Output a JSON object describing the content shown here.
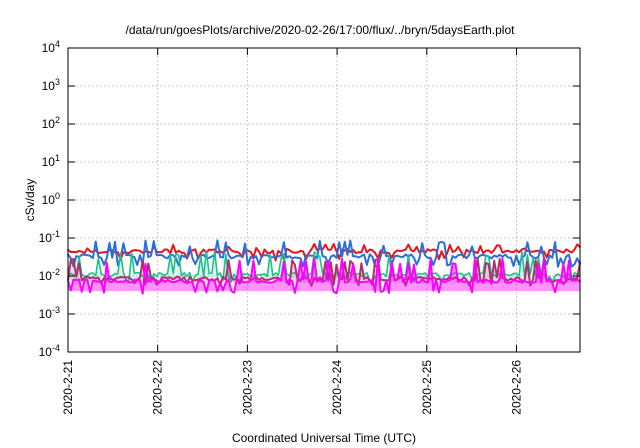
{
  "chart_data": {
    "type": "line",
    "title": "/data/run/goesPlots/archive/2020-02-26/17:00/flux/../bryn/5daysEarth.plot",
    "xlabel": "Coordinated Universal Time (UTC)",
    "ylabel": "cSv/day",
    "yscale": "log",
    "ylim": [
      0.0001,
      10000
    ],
    "xlim": [
      "2020-02-21",
      "2020-02-26 17:00"
    ],
    "grid": true,
    "legend": "none",
    "x_ticks": [
      "2020-2-21",
      "2020-2-22",
      "2020-2-23",
      "2020-2-24",
      "2020-2-25",
      "2020-2-26"
    ],
    "y_ticks": [
      {
        "base": "10",
        "exp": "-4"
      },
      {
        "base": "10",
        "exp": "-3"
      },
      {
        "base": "10",
        "exp": "-2"
      },
      {
        "base": "10",
        "exp": "-1"
      },
      {
        "base": "10",
        "exp": "0"
      },
      {
        "base": "10",
        "exp": "1"
      },
      {
        "base": "10",
        "exp": "2"
      },
      {
        "base": "10",
        "exp": "3"
      },
      {
        "base": "10",
        "exp": "4"
      }
    ],
    "series": [
      {
        "color": "#e8141b",
        "baseline": 0.045,
        "spike": 0.07,
        "dip": 0.03
      },
      {
        "color": "#2a6fdc",
        "baseline": 0.033,
        "spike": 0.09,
        "dip": 0.02
      },
      {
        "color": "#1fbf8f",
        "baseline": 0.011,
        "spike": 0.045,
        "dip": 0.008
      },
      {
        "color": "#b0306e",
        "baseline": 0.0085,
        "spike": 0.03,
        "dip": 0.0065
      },
      {
        "color": "#ff00ff",
        "baseline": 0.0075,
        "spike": 0.03,
        "dip": 0.004
      }
    ]
  }
}
